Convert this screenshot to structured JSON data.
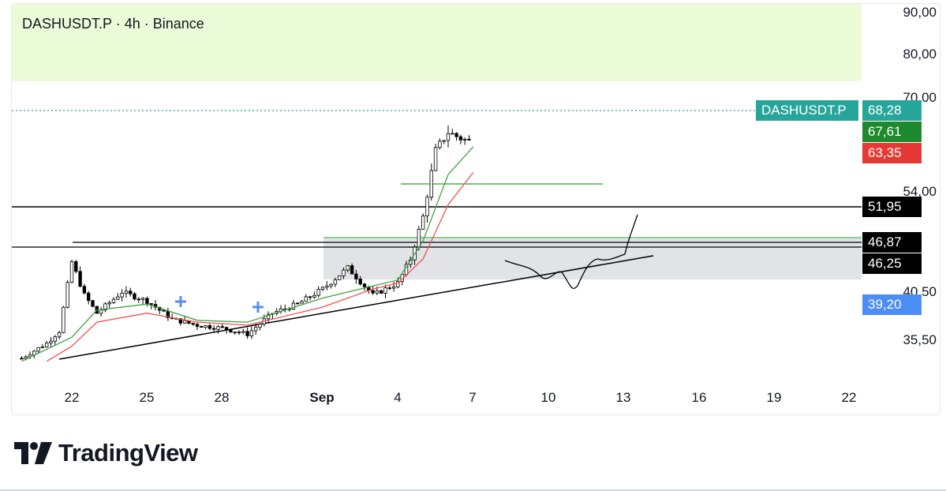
{
  "header": {
    "title": "DASHUSDT.P · 4h · Binance"
  },
  "brand": {
    "name": "TradingView",
    "logo_icon": "tradingview-logo-icon"
  },
  "price_axis": {
    "ticks": [
      "90,00",
      "80,00",
      "70,00",
      "54,00",
      "40,50",
      "35,50"
    ],
    "badges": [
      {
        "symbol": "DASHUSDT.P",
        "value": "68,28",
        "color": "#26a69a"
      },
      {
        "value": "67,61",
        "color": "#1e8a2d"
      },
      {
        "value": "63,35",
        "color": "#e53935"
      },
      {
        "value": "51,95",
        "color": "#000000"
      },
      {
        "value": "46,87",
        "color": "#000000"
      },
      {
        "value": "46,25",
        "color": "#000000"
      },
      {
        "value": "39,20",
        "color": "#4c8df6"
      }
    ]
  },
  "time_axis": {
    "labels": [
      "22",
      "25",
      "28",
      "Sep",
      "4",
      "7",
      "10",
      "13",
      "16",
      "19",
      "22"
    ],
    "bold_label": "Sep"
  },
  "chart_data": {
    "type": "candlestick",
    "title": "DASHUSDT.P · 4h · Binance",
    "symbol": "DASHUSDT.P",
    "interval": "4h",
    "exchange": "Binance",
    "x_range": [
      "Aug 20",
      "Sep 22"
    ],
    "y_range": [
      32,
      92
    ],
    "last_price": 68.28,
    "key_path": [
      [
        "Aug 20",
        32.5
      ],
      [
        "Aug 21",
        35
      ],
      [
        "Aug 21.5",
        37
      ],
      [
        "Aug 22",
        48.5
      ],
      [
        "Aug 22.5",
        43
      ],
      [
        "Aug 23",
        40
      ],
      [
        "Aug 24",
        43.5
      ],
      [
        "Aug 25",
        42
      ],
      [
        "Aug 26",
        39
      ],
      [
        "Aug 27",
        38
      ],
      [
        "Aug 28",
        37.5
      ],
      [
        "Aug 29",
        36.5
      ],
      [
        "Aug 30",
        40
      ],
      [
        "Aug 31",
        41.5
      ],
      [
        "Sep 1",
        44
      ],
      [
        "Sep 2",
        47.5
      ],
      [
        "Sep 3",
        43
      ],
      [
        "Sep 4",
        45
      ],
      [
        "Sep 4.5",
        49
      ],
      [
        "Sep 5",
        56
      ],
      [
        "Sep 5.5",
        67
      ],
      [
        "Sep 6",
        70
      ],
      [
        "Sep 6.5",
        69
      ],
      [
        "Sep 7",
        68.28
      ]
    ],
    "ema_fast": [
      [
        "Aug 20",
        32
      ],
      [
        "Aug 22",
        36
      ],
      [
        "Aug 23",
        40.5
      ],
      [
        "Aug 25",
        41.5
      ],
      [
        "Aug 27",
        38.8
      ],
      [
        "Aug 29",
        38.5
      ],
      [
        "Sep 1",
        42.5
      ],
      [
        "Sep 3",
        44.5
      ],
      [
        "Sep 4",
        45.5
      ],
      [
        "Sep 5",
        52
      ],
      [
        "Sep 6",
        63
      ],
      [
        "Sep 7",
        67.61
      ]
    ],
    "ema_slow": [
      [
        "Aug 21",
        32
      ],
      [
        "Aug 22",
        34.5
      ],
      [
        "Aug 23",
        38.5
      ],
      [
        "Aug 25",
        40
      ],
      [
        "Aug 27",
        38.5
      ],
      [
        "Aug 29",
        38
      ],
      [
        "Sep 1",
        41
      ],
      [
        "Sep 3",
        44
      ],
      [
        "Sep 4",
        45
      ],
      [
        "Sep 5",
        49
      ],
      [
        "Sep 6",
        58
      ],
      [
        "Sep 7",
        63.35
      ]
    ],
    "levels": [
      {
        "price": 51.95
      },
      {
        "price": 46.87
      },
      {
        "price": 46.25
      },
      {
        "price": 39.2
      }
    ],
    "zones": [
      {
        "from": 74,
        "to": 92,
        "color": "#ecfbd7"
      },
      {
        "from": 42.5,
        "to": 47.5,
        "color": "#e2e3e6"
      }
    ]
  }
}
